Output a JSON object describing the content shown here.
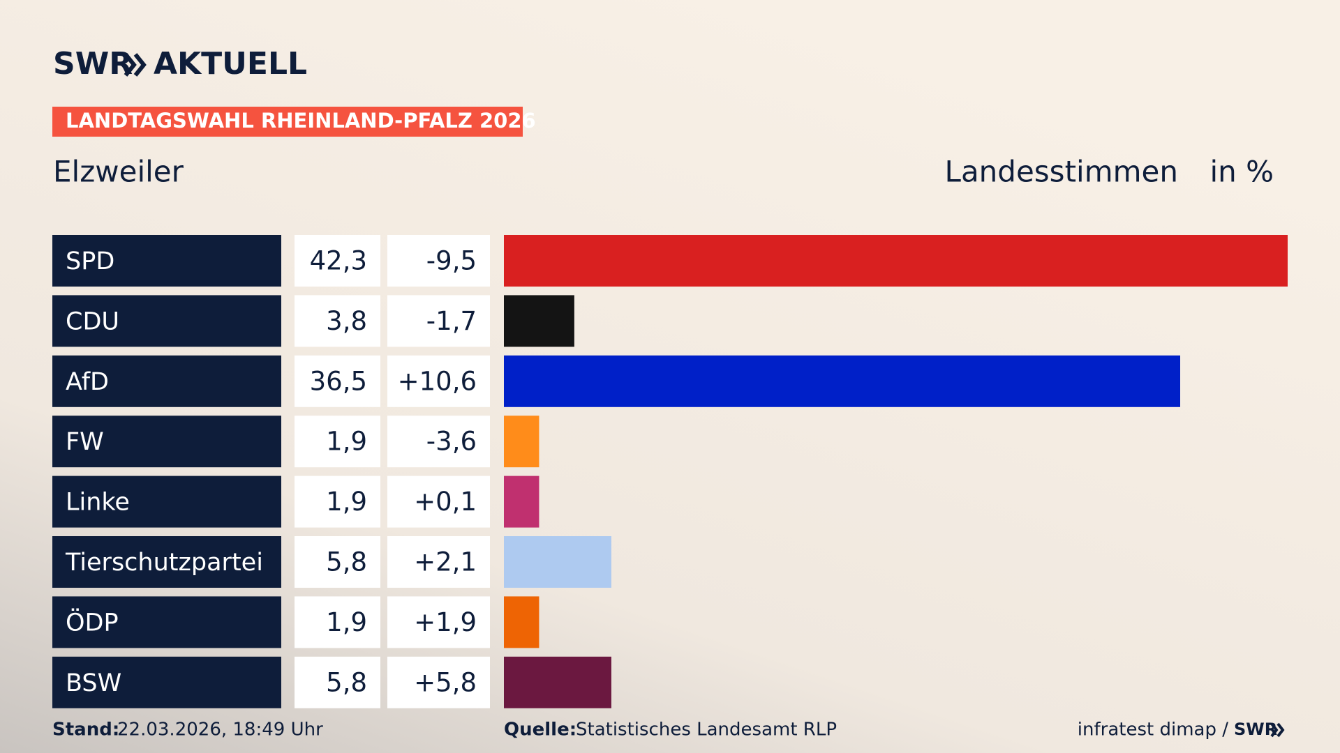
{
  "chart_data": {
    "type": "bar",
    "brand": "SWR",
    "brand_sub": "AKTUELL",
    "title": "LANDTAGSWAHL RHEINLAND-PFALZ 2026",
    "subtitle": "Elzweiler",
    "measure": "Landesstimmen",
    "unit": "in %",
    "categories": [
      "SPD",
      "CDU",
      "AfD",
      "FW",
      "Linke",
      "Tierschutzpartei",
      "ÖDP",
      "BSW"
    ],
    "values": [
      42.3,
      3.8,
      36.5,
      1.9,
      1.9,
      5.8,
      1.9,
      5.8
    ],
    "value_labels": [
      "42,3",
      "3,8",
      "36,5",
      "1,9",
      "1,9",
      "5,8",
      "1,9",
      "5,8"
    ],
    "changes": [
      -9.5,
      -1.7,
      10.6,
      -3.6,
      0.1,
      2.1,
      1.9,
      5.8
    ],
    "change_labels": [
      "-9,5",
      "-1,7",
      "+10,6",
      "-3,6",
      "+0,1",
      "+2,1",
      "+1,9",
      "+5,8"
    ],
    "colors": [
      "#d92020",
      "#141414",
      "#0020c8",
      "#ff8c1a",
      "#c0306f",
      "#aecaf0",
      "#ee6404",
      "#6b1840"
    ],
    "xlim": [
      0,
      42.3
    ],
    "footer": {
      "stand_label": "Stand:",
      "stand": "22.03.2026, 18:49 Uhr",
      "source_label": "Quelle:",
      "source": "Statistisches Landesamt RLP",
      "credit": "infratest dimap /",
      "credit_brand": "SWR"
    }
  }
}
